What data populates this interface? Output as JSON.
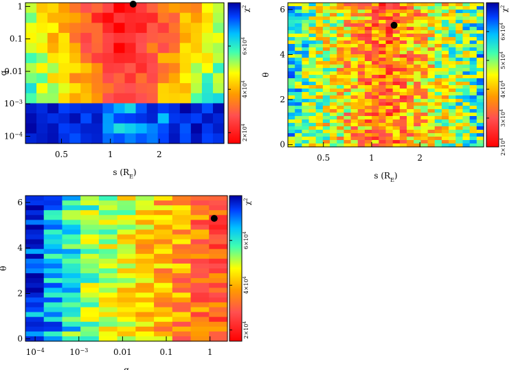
{
  "chart_data": [
    {
      "type": "heatmap",
      "id": "panel-s-q",
      "xlabel": "s (R",
      "xlabel_sub": "E",
      "xlabel_close": ")",
      "ylabel": "q",
      "x_scale": "log",
      "y_scale": "log",
      "xlim": [
        0.3,
        5
      ],
      "ylim": [
        6e-05,
        1.3
      ],
      "x_ticks": [
        {
          "value": 0.5,
          "label": "0.5"
        },
        {
          "value": 1,
          "label": "1"
        },
        {
          "value": 2,
          "label": "2"
        }
      ],
      "y_ticks": [
        {
          "value": 1,
          "label": "1"
        },
        {
          "value": 0.1,
          "label": "0.1"
        },
        {
          "value": 0.01,
          "label": "0.01"
        },
        {
          "value": 0.001,
          "label": "10",
          "sup": "−3"
        },
        {
          "value": 0.0001,
          "label": "10",
          "sup": "−4"
        }
      ],
      "best_fit_marker": {
        "x": 1.38,
        "y": 1.25
      },
      "colorbar": {
        "title": "χ",
        "title_sup": "2",
        "labels": [
          {
            "value": 60000,
            "label": "6×10",
            "sup": "4"
          },
          {
            "value": 40000,
            "label": "4×10",
            "sup": "4"
          },
          {
            "value": 20000,
            "label": "2×10",
            "sup": "4"
          }
        ],
        "range": [
          15000,
          80000
        ]
      },
      "grid": {
        "cols": 18,
        "rows": 14,
        "seed": 11
      }
    },
    {
      "type": "heatmap",
      "id": "panel-s-theta",
      "xlabel": "s (R",
      "xlabel_sub": "E",
      "xlabel_close": ")",
      "ylabel": "θ",
      "x_scale": "log",
      "y_scale": "linear",
      "xlim": [
        0.3,
        5
      ],
      "ylim": [
        -0.1,
        6.3
      ],
      "x_ticks": [
        {
          "value": 0.5,
          "label": "0.5"
        },
        {
          "value": 1,
          "label": "1"
        },
        {
          "value": 2,
          "label": "2"
        }
      ],
      "y_ticks": [
        {
          "value": 0,
          "label": "0"
        },
        {
          "value": 2,
          "label": "2"
        },
        {
          "value": 4,
          "label": "4"
        },
        {
          "value": 6,
          "label": "6"
        }
      ],
      "best_fit_marker": {
        "x": 1.38,
        "y": 5.3
      },
      "colorbar": {
        "title": "χ",
        "title_sup": "2",
        "labels": [
          {
            "value": 60000,
            "label": "6×10",
            "sup": "4"
          },
          {
            "value": 50000,
            "label": "5×10",
            "sup": "4"
          },
          {
            "value": 40000,
            "label": "4×10",
            "sup": "4"
          },
          {
            "value": 30000,
            "label": "3×10",
            "sup": "4"
          },
          {
            "value": 20000,
            "label": "2×10",
            "sup": "4"
          }
        ],
        "range": [
          20000,
          70000
        ]
      },
      "grid": {
        "cols": 28,
        "rows": 42,
        "seed": 23
      }
    },
    {
      "type": "heatmap",
      "id": "panel-q-theta",
      "xlabel": "q",
      "ylabel": "θ",
      "x_scale": "log",
      "y_scale": "linear",
      "xlim": [
        6e-05,
        2.5
      ],
      "ylim": [
        -0.1,
        6.3
      ],
      "x_ticks": [
        {
          "value": 0.0001,
          "label": "10",
          "sup": "−4"
        },
        {
          "value": 0.001,
          "label": "10",
          "sup": "−3"
        },
        {
          "value": 0.01,
          "label": "0.01"
        },
        {
          "value": 0.1,
          "label": "0.1"
        },
        {
          "value": 1,
          "label": "1"
        }
      ],
      "y_ticks": [
        {
          "value": 0,
          "label": "0"
        },
        {
          "value": 2,
          "label": "2"
        },
        {
          "value": 4,
          "label": "4"
        },
        {
          "value": 6,
          "label": "6"
        }
      ],
      "best_fit_marker": {
        "x": 1.25,
        "y": 5.3
      },
      "colorbar": {
        "title": "χ",
        "title_sup": "2",
        "labels": [
          {
            "value": 60000,
            "label": "6×10",
            "sup": "4"
          },
          {
            "value": 40000,
            "label": "4×10",
            "sup": "4"
          },
          {
            "value": 20000,
            "label": "2×10",
            "sup": "4"
          }
        ],
        "range": [
          15000,
          80000
        ]
      },
      "grid": {
        "cols": 11,
        "rows": 30,
        "seed": 37
      }
    }
  ]
}
